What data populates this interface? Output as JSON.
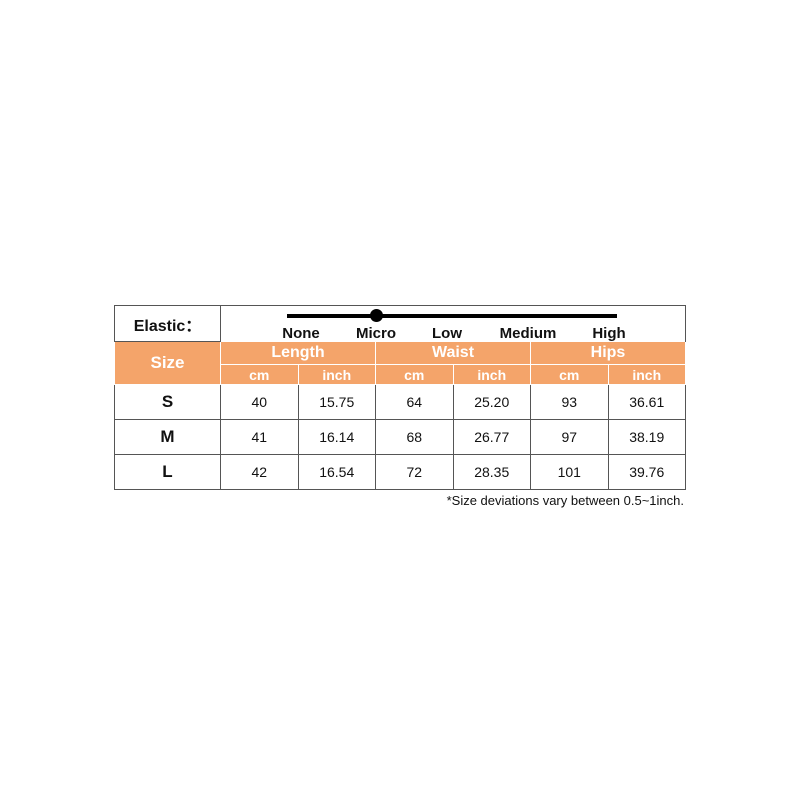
{
  "elastic": {
    "label": "Elastic：",
    "levels": [
      "None",
      "Micro",
      "Low",
      "Medium",
      "High"
    ],
    "selected": "Micro"
  },
  "header": {
    "size": "Size",
    "groups": [
      "Length",
      "Waist",
      "Hips"
    ],
    "units": [
      "cm",
      "inch",
      "cm",
      "inch",
      "cm",
      "inch"
    ]
  },
  "rows": [
    {
      "size": "S",
      "values": [
        "40",
        "15.75",
        "64",
        "25.20",
        "93",
        "36.61"
      ]
    },
    {
      "size": "M",
      "values": [
        "41",
        "16.14",
        "68",
        "26.77",
        "97",
        "38.19"
      ]
    },
    {
      "size": "L",
      "values": [
        "42",
        "16.54",
        "72",
        "28.35",
        "101",
        "39.76"
      ]
    }
  ],
  "note": "*Size deviations vary between 0.5~1inch.",
  "colors": {
    "header": "#f4a46a"
  }
}
